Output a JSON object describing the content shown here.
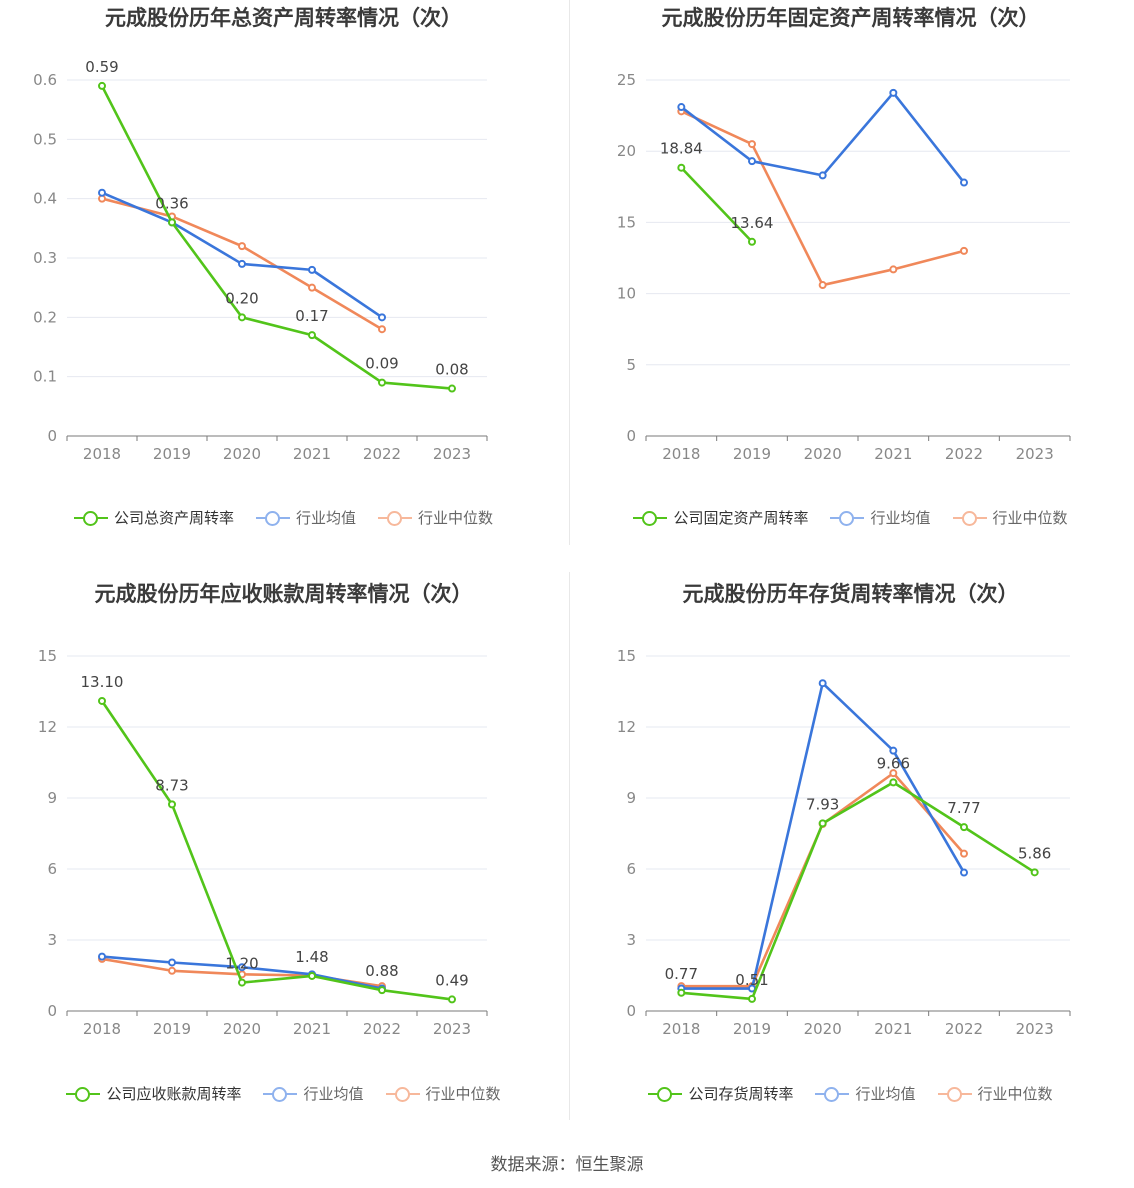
{
  "colors": {
    "company": "#52c41a",
    "industry_avg": "#3a76db",
    "industry_median": "#f0885a"
  },
  "legend_items": {
    "industry_avg": "行业均值",
    "industry_median": "行业中位数"
  },
  "source": "数据来源：恒生聚源",
  "chart_data": [
    {
      "type": "line",
      "title": "元成股份历年总资产周转率情况（次）",
      "categories": [
        "2018",
        "2019",
        "2020",
        "2021",
        "2022",
        "2023"
      ],
      "yticks": [
        "0",
        "0.1",
        "0.2",
        "0.3",
        "0.4",
        "0.5",
        "0.6"
      ],
      "ylim": [
        0,
        0.6
      ],
      "series": [
        {
          "key": "company",
          "name": "公司总资产周转率",
          "values": [
            0.59,
            0.36,
            0.2,
            0.17,
            0.09,
            0.08
          ],
          "labels": [
            "0.59",
            "0.36",
            "0.20",
            "0.17",
            "0.09",
            "0.08"
          ]
        },
        {
          "key": "industry_avg",
          "name": "行业均值",
          "values": [
            0.41,
            0.36,
            0.29,
            0.28,
            0.2,
            null
          ]
        },
        {
          "key": "industry_median",
          "name": "行业中位数",
          "values": [
            0.4,
            0.37,
            0.32,
            0.25,
            0.18,
            null
          ]
        }
      ]
    },
    {
      "type": "line",
      "title": "元成股份历年固定资产周转率情况（次）",
      "categories": [
        "2018",
        "2019",
        "2020",
        "2021",
        "2022",
        "2023"
      ],
      "yticks": [
        "0",
        "5",
        "10",
        "15",
        "20",
        "25"
      ],
      "ylim": [
        0,
        25
      ],
      "series": [
        {
          "key": "company",
          "name": "公司固定资产周转率",
          "values": [
            18.84,
            13.64,
            null,
            null,
            null,
            null
          ],
          "labels": [
            "18.84",
            "13.64",
            null,
            null,
            null,
            null
          ]
        },
        {
          "key": "industry_avg",
          "name": "行业均值",
          "values": [
            23.1,
            19.3,
            18.3,
            24.1,
            17.8,
            null
          ]
        },
        {
          "key": "industry_median",
          "name": "行业中位数",
          "values": [
            22.8,
            20.5,
            10.6,
            11.7,
            13.0,
            null
          ]
        }
      ]
    },
    {
      "type": "line",
      "title": "元成股份历年应收账款周转率情况（次）",
      "categories": [
        "2018",
        "2019",
        "2020",
        "2021",
        "2022",
        "2023"
      ],
      "yticks": [
        "0",
        "3",
        "6",
        "9",
        "12",
        "15"
      ],
      "ylim": [
        0,
        15
      ],
      "series": [
        {
          "key": "company",
          "name": "公司应收账款周转率",
          "values": [
            13.1,
            8.73,
            1.2,
            1.48,
            0.88,
            0.49
          ],
          "labels": [
            "13.10",
            "8.73",
            "1.20",
            "1.48",
            "0.88",
            "0.49"
          ]
        },
        {
          "key": "industry_avg",
          "name": "行业均值",
          "values": [
            2.3,
            2.05,
            1.85,
            1.55,
            0.95,
            null
          ]
        },
        {
          "key": "industry_median",
          "name": "行业中位数",
          "values": [
            2.2,
            1.7,
            1.55,
            1.5,
            1.05,
            null
          ]
        }
      ]
    },
    {
      "type": "line",
      "title": "元成股份历年存货周转率情况（次）",
      "categories": [
        "2018",
        "2019",
        "2020",
        "2021",
        "2022",
        "2023"
      ],
      "yticks": [
        "0",
        "3",
        "6",
        "9",
        "12",
        "15"
      ],
      "ylim": [
        0,
        15
      ],
      "series": [
        {
          "key": "company",
          "name": "公司存货周转率",
          "values": [
            0.77,
            0.51,
            7.93,
            9.66,
            7.77,
            5.86
          ],
          "labels": [
            "0.77",
            "0.51",
            "7.93",
            "9.66",
            "7.77",
            "5.86"
          ]
        },
        {
          "key": "industry_avg",
          "name": "行业均值",
          "values": [
            0.95,
            0.95,
            13.85,
            11.0,
            5.85,
            null
          ]
        },
        {
          "key": "industry_median",
          "name": "行业中位数",
          "values": [
            1.05,
            1.05,
            7.9,
            10.05,
            6.65,
            null
          ]
        }
      ]
    }
  ]
}
